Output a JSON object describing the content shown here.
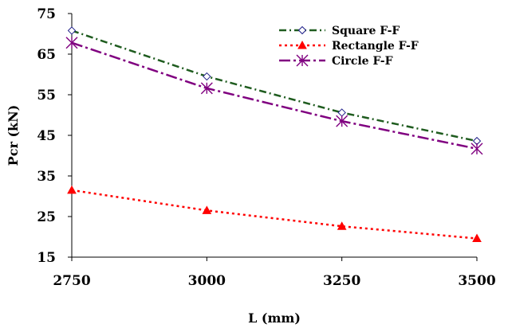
{
  "chart_data": {
    "type": "line",
    "xlabel": "L (mm)",
    "ylabel": "Pcr (kN)",
    "x": [
      2750,
      3000,
      3250,
      3500
    ],
    "xlim": [
      2750,
      3500
    ],
    "ylim": [
      15,
      75
    ],
    "x_ticks": [
      "2750",
      "3000",
      "3250",
      "3500"
    ],
    "y_ticks": [
      "15",
      "25",
      "35",
      "45",
      "55",
      "65",
      "75"
    ],
    "grid": false,
    "legend_position": "top-right",
    "series": [
      {
        "name": "Square F-F",
        "values": [
          70.8,
          59.5,
          50.6,
          43.6
        ],
        "color": "#1f5c1f",
        "marker": "diamond",
        "dash": "dash-dot"
      },
      {
        "name": "Rectangle F-F",
        "values": [
          31.5,
          26.5,
          22.6,
          19.6
        ],
        "color": "#ff0000",
        "marker": "triangle",
        "dash": "dotted"
      },
      {
        "name": "Circle F-F",
        "values": [
          67.8,
          56.6,
          48.5,
          41.7
        ],
        "color": "#800080",
        "marker": "asterisk",
        "dash": "long-dash-dot"
      }
    ]
  }
}
